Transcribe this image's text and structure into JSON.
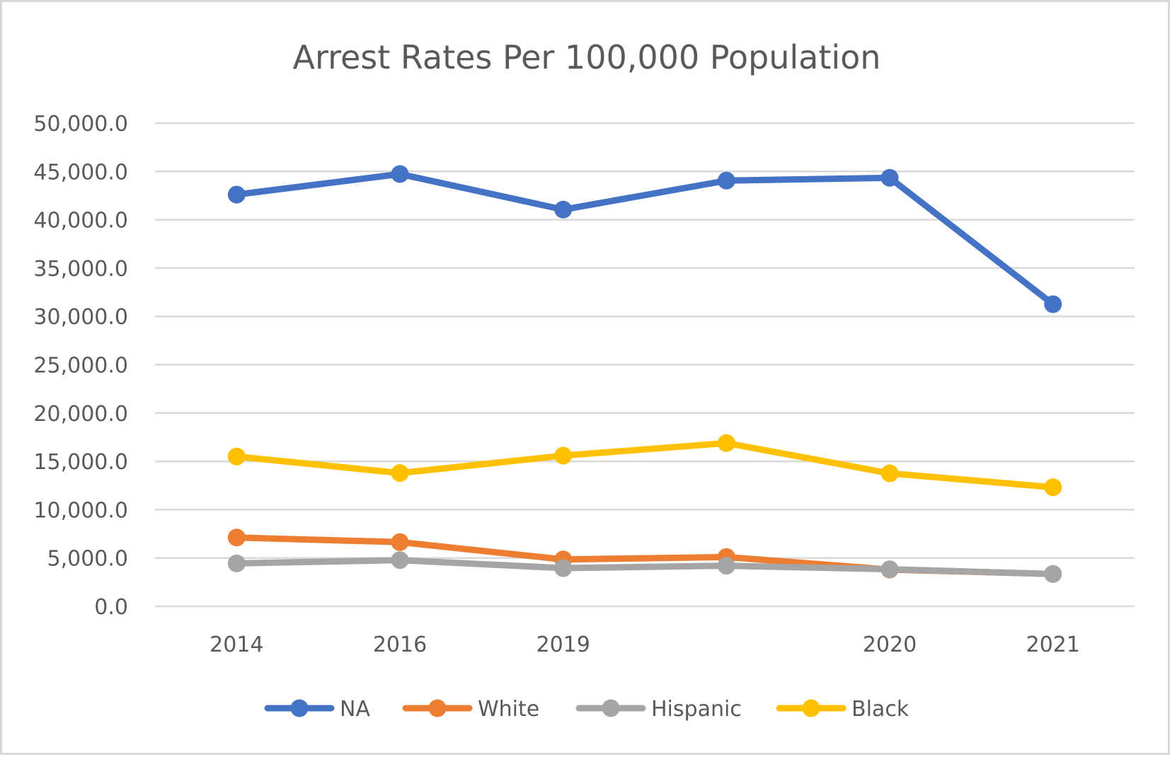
{
  "chart_data": {
    "type": "line",
    "title": "Arrest Rates Per 100,000 Population",
    "xlabel": "",
    "ylabel": "",
    "categories": [
      "2014",
      "2016",
      "2019",
      "",
      "2020",
      "2021"
    ],
    "ylim": [
      0,
      50000
    ],
    "y_ticks": [
      0,
      5000,
      10000,
      15000,
      20000,
      25000,
      30000,
      35000,
      40000,
      45000,
      50000
    ],
    "y_tick_labels": [
      "0.0",
      "5,000.0",
      "10,000.0",
      "15,000.0",
      "20,000.0",
      "25,000.0",
      "30,000.0",
      "35,000.0",
      "40,000.0",
      "45,000.0",
      "50,000.0"
    ],
    "grid": true,
    "legend_position": "bottom",
    "series": [
      {
        "name": "NA",
        "color": "#4472C4",
        "values": [
          42600,
          44730,
          41050,
          44050,
          44340,
          31260
        ]
      },
      {
        "name": "White",
        "color": "#ED7D31",
        "values": [
          7120,
          6640,
          4850,
          5100,
          3800,
          3350
        ]
      },
      {
        "name": "Hispanic",
        "color": "#A5A5A5",
        "values": [
          4440,
          4780,
          3950,
          4200,
          3830,
          3340
        ]
      },
      {
        "name": "Black",
        "color": "#FFC000",
        "values": [
          15500,
          13790,
          15590,
          16890,
          13760,
          12320
        ]
      }
    ]
  }
}
